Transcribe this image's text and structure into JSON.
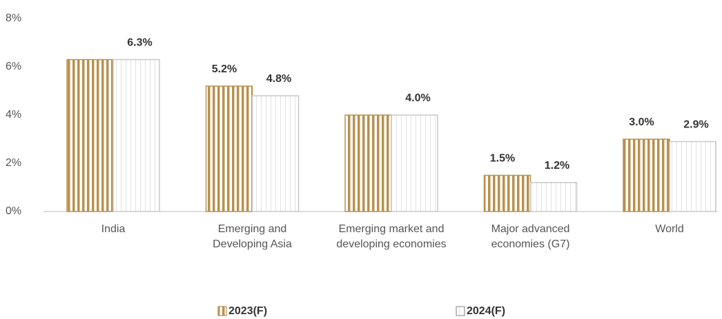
{
  "chart_data": {
    "type": "bar",
    "categories": [
      "India",
      "Emerging and\nDeveloping Asia",
      "Emerging market and\ndeveloping economies",
      "Major advanced\neconomies (G7)",
      "World"
    ],
    "series": [
      {
        "name": "2023(F)",
        "color": "#b8914f",
        "values": [
          6.3,
          5.2,
          4.0,
          1.5,
          3.0
        ],
        "value_labels": [
          null,
          "5.2%",
          null,
          "1.5%",
          "3.0%"
        ]
      },
      {
        "name": "2024(F)",
        "color": "#c8c8c8",
        "values": [
          6.3,
          4.8,
          4.0,
          1.2,
          2.9
        ],
        "value_labels": [
          "6.3%",
          "4.8%",
          "4.0%",
          "1.2%",
          "2.9%"
        ]
      }
    ],
    "ylim": [
      0,
      8
    ],
    "yticks": [
      {
        "value": 0,
        "label": "0%"
      },
      {
        "value": 2,
        "label": "2%"
      },
      {
        "value": 4,
        "label": "4%"
      },
      {
        "value": 6,
        "label": "6%"
      },
      {
        "value": 8,
        "label": "8%"
      }
    ],
    "grid": false,
    "legend": "bottom"
  }
}
